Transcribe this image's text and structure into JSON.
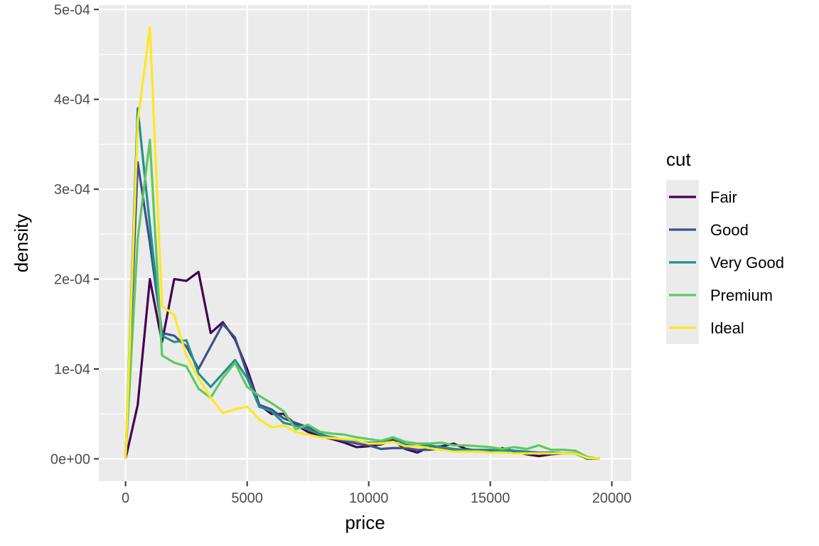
{
  "chart_data": {
    "type": "line",
    "xlabel": "price",
    "ylabel": "density",
    "xlim": [
      -1100,
      20800
    ],
    "ylim": [
      -2.5e-05,
      0.000505
    ],
    "x_ticks": [
      0,
      5000,
      10000,
      15000,
      20000
    ],
    "x_tick_labels": [
      "0",
      "5000",
      "10000",
      "15000",
      "20000"
    ],
    "y_ticks": [
      0,
      0.0001,
      0.0002,
      0.0003,
      0.0004,
      0.0005
    ],
    "y_tick_labels": [
      "0e+00",
      "1e-04",
      "2e-04",
      "3e-04",
      "4e-04",
      "5e-04"
    ],
    "grid": true,
    "legend": {
      "title": "cut",
      "position": "right"
    },
    "x": [
      0,
      500,
      1000,
      1500,
      2000,
      2500,
      3000,
      3500,
      4000,
      4500,
      5000,
      5500,
      6000,
      6500,
      7000,
      7500,
      8000,
      8500,
      9000,
      9500,
      10000,
      10500,
      11000,
      11500,
      12000,
      12500,
      13000,
      13500,
      14000,
      14500,
      15000,
      15500,
      16000,
      16500,
      17000,
      17500,
      18000,
      18500,
      19000,
      19500
    ],
    "series": [
      {
        "name": "Fair",
        "color": "#440154",
        "values": [
          0,
          6e-05,
          0.0002,
          0.00013,
          0.0002,
          0.000198,
          0.000208,
          0.00014,
          0.000152,
          0.000133,
          0.0001,
          6e-05,
          5e-05,
          5e-05,
          3.8e-05,
          3e-05,
          2.5e-05,
          2.2e-05,
          1.8e-05,
          1.3e-05,
          1.4e-05,
          1.6e-05,
          2.1e-05,
          1.1e-05,
          7e-06,
          1.3e-05,
          1.4e-05,
          1.7e-05,
          1.1e-05,
          9e-06,
          7e-06,
          1.2e-05,
          8e-06,
          5e-06,
          3e-06,
          5e-06,
          6e-06,
          6e-06,
          0,
          0
        ]
      },
      {
        "name": "Good",
        "color": "#3b528b",
        "values": [
          0,
          0.00033,
          0.00024,
          0.00014,
          0.000137,
          0.000125,
          0.0001,
          0.000125,
          0.00015,
          0.000135,
          9.5e-05,
          6e-05,
          5.5e-05,
          4.5e-05,
          4e-05,
          3.5e-05,
          2.8e-05,
          2.3e-05,
          2e-05,
          1.7e-05,
          1.5e-05,
          1.1e-05,
          1.2e-05,
          1.2e-05,
          1e-05,
          1e-05,
          1.2e-05,
          1e-05,
          9e-06,
          8e-06,
          9e-06,
          1e-05,
          9e-06,
          7e-06,
          6e-06,
          7e-06,
          6e-06,
          6e-06,
          0,
          0
        ]
      },
      {
        "name": "Very Good",
        "color": "#21908c",
        "values": [
          0,
          0.00039,
          0.00026,
          0.000137,
          0.00013,
          0.000132,
          9.5e-05,
          8e-05,
          9.5e-05,
          0.00011,
          9e-05,
          5.8e-05,
          5.3e-05,
          4e-05,
          3.7e-05,
          3.3e-05,
          2.7e-05,
          2.4e-05,
          2.1e-05,
          2e-05,
          1.8e-05,
          1.8e-05,
          2.3e-05,
          1.6e-05,
          1.4e-05,
          1.5e-05,
          1.3e-05,
          1.1e-05,
          1e-05,
          1e-05,
          1e-05,
          9e-06,
          9e-06,
          8e-06,
          7e-06,
          7e-06,
          6e-06,
          6e-06,
          0,
          0
        ]
      },
      {
        "name": "Premium",
        "color": "#5dc863",
        "values": [
          0,
          0.000245,
          0.000355,
          0.000115,
          0.000107,
          0.000103,
          7.8e-05,
          6.8e-05,
          9e-05,
          0.000107,
          8e-05,
          7e-05,
          6.2e-05,
          5.3e-05,
          3.3e-05,
          3.8e-05,
          3e-05,
          2.8e-05,
          2.7e-05,
          2.4e-05,
          2.2e-05,
          2e-05,
          2.4e-05,
          1.9e-05,
          1.7e-05,
          1.7e-05,
          1.8e-05,
          1.5e-05,
          1.5e-05,
          1.4e-05,
          1.3e-05,
          1.1e-05,
          1.3e-05,
          1.1e-05,
          1.5e-05,
          1e-05,
          1e-05,
          9e-06,
          2e-06,
          0
        ]
      },
      {
        "name": "Ideal",
        "color": "#fde725",
        "values": [
          0,
          0.000375,
          0.00048,
          0.00017,
          0.00016,
          0.000115,
          9e-05,
          6.8e-05,
          5.1e-05,
          5.5e-05,
          5.8e-05,
          4.4e-05,
          3.5e-05,
          3.7e-05,
          3e-05,
          2.7e-05,
          2.4e-05,
          2.3e-05,
          2.2e-05,
          2.1e-05,
          1.7e-05,
          1.7e-05,
          1.9e-05,
          1.4e-05,
          1.4e-05,
          1.2e-05,
          1e-05,
          8e-06,
          8e-06,
          8e-06,
          7e-06,
          7e-06,
          6e-06,
          6e-06,
          6e-06,
          6e-06,
          6e-06,
          6e-06,
          1e-06,
          0
        ]
      }
    ]
  }
}
